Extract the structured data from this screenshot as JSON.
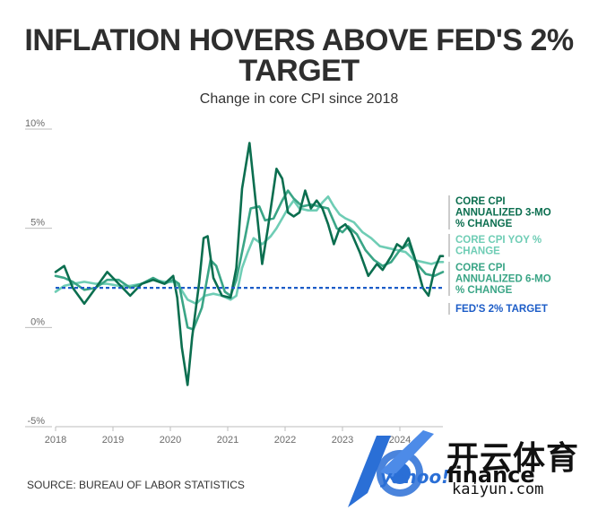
{
  "chart_data": {
    "type": "line",
    "title": "INFLATION HOVERS ABOVE FED'S 2% TARGET",
    "subtitle": "Change in core CPI since 2018",
    "ylabel": "",
    "xlabel": "",
    "ylim": [
      -5,
      10
    ],
    "xlim": [
      2018.0,
      2024.75
    ],
    "y_ticks": [
      -5,
      0,
      5,
      10
    ],
    "y_tick_labels": [
      "-5%",
      "0%",
      "5%",
      "10%"
    ],
    "x_ticks": [
      2018,
      2019,
      2020,
      2021,
      2022,
      2023,
      2024
    ],
    "x_tick_labels": [
      "2018",
      "2019",
      "2020",
      "2021",
      "2022",
      "2023",
      "2024"
    ],
    "grid": false,
    "legend_position": "right",
    "source": "SOURCE: BUREAU OF LABOR STATISTICS",
    "series": [
      {
        "name": "CORE CPI ANNUALIZED 3-MO % CHANGE",
        "label_lines": [
          "CORE CPI",
          "ANNUALIZED 3-MO",
          "% CHANGE"
        ],
        "color": "#0b6e4f",
        "points": [
          [
            2018.0,
            2.8
          ],
          [
            2018.15,
            3.1
          ],
          [
            2018.3,
            2.0
          ],
          [
            2018.5,
            1.2
          ],
          [
            2018.7,
            2.0
          ],
          [
            2018.9,
            2.8
          ],
          [
            2019.1,
            2.2
          ],
          [
            2019.3,
            1.6
          ],
          [
            2019.5,
            2.2
          ],
          [
            2019.7,
            2.4
          ],
          [
            2019.9,
            2.2
          ],
          [
            2020.05,
            2.6
          ],
          [
            2020.12,
            1.5
          ],
          [
            2020.2,
            -1.0
          ],
          [
            2020.3,
            -2.9
          ],
          [
            2020.38,
            -0.5
          ],
          [
            2020.5,
            2.2
          ],
          [
            2020.58,
            4.5
          ],
          [
            2020.65,
            4.6
          ],
          [
            2020.75,
            2.5
          ],
          [
            2020.9,
            1.6
          ],
          [
            2021.05,
            1.5
          ],
          [
            2021.15,
            3.0
          ],
          [
            2021.25,
            7.0
          ],
          [
            2021.38,
            9.3
          ],
          [
            2021.5,
            6.0
          ],
          [
            2021.6,
            3.2
          ],
          [
            2021.7,
            5.0
          ],
          [
            2021.85,
            8.0
          ],
          [
            2021.95,
            7.5
          ],
          [
            2022.05,
            5.8
          ],
          [
            2022.15,
            5.6
          ],
          [
            2022.25,
            5.8
          ],
          [
            2022.35,
            6.9
          ],
          [
            2022.45,
            6.0
          ],
          [
            2022.55,
            6.4
          ],
          [
            2022.65,
            6.0
          ],
          [
            2022.75,
            5.2
          ],
          [
            2022.85,
            4.2
          ],
          [
            2022.95,
            5.0
          ],
          [
            2023.05,
            5.2
          ],
          [
            2023.15,
            4.8
          ],
          [
            2023.3,
            3.8
          ],
          [
            2023.45,
            2.6
          ],
          [
            2023.6,
            3.2
          ],
          [
            2023.7,
            2.9
          ],
          [
            2023.85,
            3.6
          ],
          [
            2023.95,
            4.2
          ],
          [
            2024.05,
            4.0
          ],
          [
            2024.15,
            4.5
          ],
          [
            2024.25,
            3.6
          ],
          [
            2024.4,
            2.0
          ],
          [
            2024.5,
            1.6
          ],
          [
            2024.6,
            2.9
          ],
          [
            2024.7,
            3.6
          ],
          [
            2024.75,
            3.6
          ]
        ]
      },
      {
        "name": "CORE CPI YOY % CHANGE",
        "label_lines": [
          "CORE CPI YOY %",
          "CHANGE"
        ],
        "color": "#6fcdb5",
        "points": [
          [
            2018.0,
            1.8
          ],
          [
            2018.15,
            2.1
          ],
          [
            2018.3,
            2.2
          ],
          [
            2018.5,
            2.3
          ],
          [
            2018.7,
            2.2
          ],
          [
            2018.9,
            2.2
          ],
          [
            2019.1,
            2.1
          ],
          [
            2019.3,
            2.1
          ],
          [
            2019.5,
            2.2
          ],
          [
            2019.7,
            2.4
          ],
          [
            2019.9,
            2.3
          ],
          [
            2020.05,
            2.3
          ],
          [
            2020.15,
            2.1
          ],
          [
            2020.3,
            1.4
          ],
          [
            2020.45,
            1.2
          ],
          [
            2020.6,
            1.6
          ],
          [
            2020.75,
            1.7
          ],
          [
            2020.9,
            1.6
          ],
          [
            2021.05,
            1.4
          ],
          [
            2021.15,
            1.6
          ],
          [
            2021.25,
            3.0
          ],
          [
            2021.35,
            3.8
          ],
          [
            2021.45,
            4.5
          ],
          [
            2021.6,
            4.2
          ],
          [
            2021.75,
            4.6
          ],
          [
            2021.85,
            5.0
          ],
          [
            2021.95,
            5.5
          ],
          [
            2022.05,
            6.0
          ],
          [
            2022.15,
            6.4
          ],
          [
            2022.25,
            6.0
          ],
          [
            2022.4,
            5.9
          ],
          [
            2022.55,
            5.9
          ],
          [
            2022.65,
            6.3
          ],
          [
            2022.75,
            6.6
          ],
          [
            2022.85,
            6.1
          ],
          [
            2022.95,
            5.7
          ],
          [
            2023.05,
            5.5
          ],
          [
            2023.2,
            5.3
          ],
          [
            2023.35,
            4.8
          ],
          [
            2023.5,
            4.5
          ],
          [
            2023.65,
            4.1
          ],
          [
            2023.8,
            4.0
          ],
          [
            2023.95,
            3.9
          ],
          [
            2024.1,
            3.8
          ],
          [
            2024.25,
            3.4
          ],
          [
            2024.4,
            3.3
          ],
          [
            2024.55,
            3.2
          ],
          [
            2024.65,
            3.3
          ],
          [
            2024.75,
            3.3
          ]
        ]
      },
      {
        "name": "CORE CPI ANNUALIZED 6-MO % CHANGE",
        "label_lines": [
          "CORE CPI",
          "ANNUALIZED 6-MO",
          "% CHANGE"
        ],
        "color": "#3aa586",
        "points": [
          [
            2018.0,
            2.6
          ],
          [
            2018.15,
            2.5
          ],
          [
            2018.3,
            2.3
          ],
          [
            2018.5,
            1.9
          ],
          [
            2018.7,
            2.0
          ],
          [
            2018.9,
            2.4
          ],
          [
            2019.1,
            2.4
          ],
          [
            2019.3,
            2.0
          ],
          [
            2019.5,
            2.2
          ],
          [
            2019.7,
            2.5
          ],
          [
            2019.9,
            2.2
          ],
          [
            2020.05,
            2.4
          ],
          [
            2020.15,
            2.2
          ],
          [
            2020.3,
            0.0
          ],
          [
            2020.4,
            -0.1
          ],
          [
            2020.55,
            1.0
          ],
          [
            2020.7,
            3.4
          ],
          [
            2020.8,
            3.1
          ],
          [
            2020.95,
            1.8
          ],
          [
            2021.05,
            1.6
          ],
          [
            2021.15,
            2.4
          ],
          [
            2021.3,
            4.5
          ],
          [
            2021.4,
            6.0
          ],
          [
            2021.55,
            6.1
          ],
          [
            2021.65,
            5.4
          ],
          [
            2021.8,
            5.5
          ],
          [
            2021.95,
            6.4
          ],
          [
            2022.05,
            6.9
          ],
          [
            2022.15,
            6.5
          ],
          [
            2022.3,
            6.1
          ],
          [
            2022.45,
            6.2
          ],
          [
            2022.6,
            6.1
          ],
          [
            2022.75,
            6.0
          ],
          [
            2022.9,
            5.0
          ],
          [
            2023.0,
            4.8
          ],
          [
            2023.1,
            5.1
          ],
          [
            2023.25,
            4.7
          ],
          [
            2023.4,
            3.9
          ],
          [
            2023.55,
            3.4
          ],
          [
            2023.7,
            3.1
          ],
          [
            2023.85,
            3.3
          ],
          [
            2024.0,
            3.9
          ],
          [
            2024.15,
            4.2
          ],
          [
            2024.3,
            3.2
          ],
          [
            2024.45,
            2.7
          ],
          [
            2024.6,
            2.6
          ],
          [
            2024.75,
            2.8
          ]
        ]
      },
      {
        "name": "FED'S 2% TARGET",
        "label_lines": [
          "FED'S 2% TARGET"
        ],
        "color": "#1c5cc7",
        "dashed": true,
        "points": [
          [
            2018.0,
            2.0
          ],
          [
            2024.75,
            2.0
          ]
        ]
      }
    ]
  },
  "logo": {
    "cn_text": "开云体育",
    "finance_text": "finance",
    "brand_text": "yahoo!",
    "domain_text": "kaiyun.com"
  }
}
